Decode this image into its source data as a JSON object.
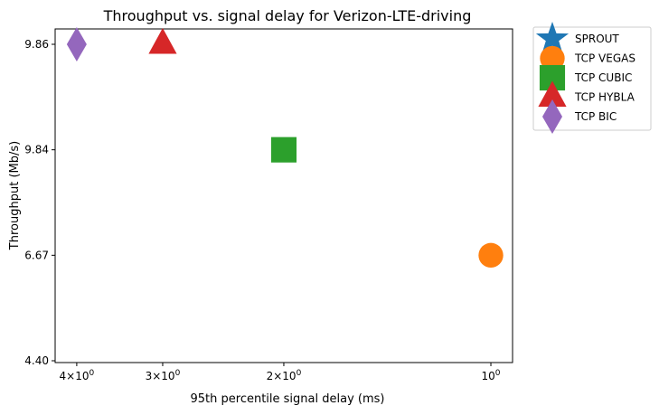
{
  "chart_data": {
    "type": "scatter",
    "title": "Throughput vs. signal delay for Verizon-LTE-driving",
    "xlabel": "95th percentile signal delay (ms)",
    "ylabel": "Throughput (Mb/s)",
    "x_scale": "log",
    "x_axis_inverted": true,
    "y_scale": "categorical",
    "xlim": [
      4.3,
      0.93
    ],
    "x_ticks": [
      {
        "value": 4,
        "base": "4×10",
        "exp": "0"
      },
      {
        "value": 3,
        "base": "3×10",
        "exp": "0"
      },
      {
        "value": 2,
        "base": "2×10",
        "exp": "0"
      },
      {
        "value": 1,
        "base": "10",
        "exp": "0"
      }
    ],
    "y_ticks": [
      "4.40",
      "6.67",
      "9.84",
      "9.86"
    ],
    "grid": false,
    "legend_position": "outside-right",
    "series": [
      {
        "name": "SPROUT",
        "marker": "star",
        "color": "#1f77b4",
        "points": []
      },
      {
        "name": "TCP VEGAS",
        "marker": "circle",
        "color": "#ff7f0e",
        "points": [
          {
            "x": 1,
            "y": "6.67"
          }
        ]
      },
      {
        "name": "TCP CUBIC",
        "marker": "square",
        "color": "#2ca02c",
        "points": [
          {
            "x": 2,
            "y": "9.84"
          }
        ]
      },
      {
        "name": "TCP HYBLA",
        "marker": "triangle",
        "color": "#d62728",
        "points": [
          {
            "x": 3,
            "y": "9.86"
          }
        ]
      },
      {
        "name": "TCP BIC",
        "marker": "diamond",
        "color": "#9467bd",
        "points": [
          {
            "x": 4,
            "y": "9.86"
          }
        ]
      }
    ]
  }
}
